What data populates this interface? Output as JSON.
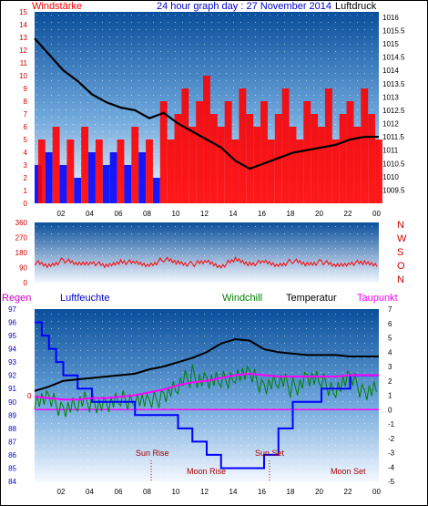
{
  "header": {
    "title": "24 hour graph day : 27 November 2014",
    "left_label": "Windstärke",
    "right_label": "Luftdruck"
  },
  "chart_data": [
    {
      "type": "line",
      "name": "wind-pressure",
      "left_axis": {
        "label": "Windstärke",
        "ylim": [
          0,
          15
        ],
        "ticks": [
          "0",
          "1",
          "2",
          "3",
          "4",
          "5",
          "6",
          "7",
          "8",
          "9",
          "10",
          "11",
          "12",
          "13",
          "14",
          "15"
        ]
      },
      "right_axis": {
        "label": "Luftdruck",
        "ylim": [
          1009,
          1016.2
        ],
        "ticks": [
          "1009.5",
          "1010",
          "1010.5",
          "1011",
          "1011.5",
          "1012",
          "1012.5",
          "1013",
          "1013.5",
          "1014",
          "1014.5",
          "1015",
          "1015.5",
          "1016"
        ]
      },
      "x_ticks": [
        "02",
        "04",
        "06",
        "08",
        "10",
        "12",
        "14",
        "16",
        "18",
        "20",
        "22",
        "00"
      ],
      "series": [
        {
          "name": "Windstärke",
          "x": [
            0,
            0.5,
            1,
            1.5,
            2,
            2.5,
            3,
            3.5,
            4,
            4.5,
            5,
            5.5,
            6,
            6.5,
            7,
            7.5,
            8,
            8.5,
            9,
            9.5,
            10,
            10.5,
            11,
            11.5,
            12,
            12.5,
            13,
            13.5,
            14,
            14.5,
            15,
            15.5,
            16,
            16.5,
            17,
            17.5,
            18,
            18.5,
            19,
            19.5,
            20,
            20.5,
            21,
            21.5,
            22,
            22.5,
            23,
            23.5,
            24
          ],
          "y": [
            3,
            5,
            4,
            6,
            3,
            5,
            2,
            6,
            4,
            5,
            3,
            4,
            5,
            3,
            6,
            4,
            5,
            2,
            8,
            5,
            7,
            9,
            6,
            8,
            10,
            7,
            6,
            8,
            5,
            9,
            7,
            6,
            8,
            5,
            7,
            9,
            6,
            5,
            8,
            7,
            6,
            9,
            5,
            7,
            8,
            6,
            9,
            7,
            5
          ]
        },
        {
          "name": "Luftdruck",
          "x": [
            0,
            1,
            2,
            3,
            4,
            5,
            6,
            7,
            8,
            9,
            10,
            11,
            12,
            13,
            14,
            15,
            16,
            17,
            18,
            19,
            20,
            21,
            22,
            23,
            24
          ],
          "y": [
            1015.2,
            1014.6,
            1014.0,
            1013.6,
            1013.1,
            1012.8,
            1012.6,
            1012.5,
            1012.2,
            1012.4,
            1012.0,
            1011.7,
            1011.4,
            1011.1,
            1010.6,
            1010.3,
            1010.5,
            1010.7,
            1010.9,
            1011.0,
            1011.1,
            1011.2,
            1011.4,
            1011.5,
            1011.5
          ]
        }
      ]
    },
    {
      "type": "line",
      "name": "wind-direction",
      "left_axis": {
        "ylim": [
          0,
          360
        ],
        "ticks": [
          "0",
          "90",
          "180",
          "270",
          "360"
        ]
      },
      "right_labels": [
        "N",
        "W",
        "S",
        "O",
        "N"
      ],
      "series": [
        {
          "name": "Windrichtung",
          "x": [
            0,
            1,
            2,
            3,
            4,
            5,
            6,
            7,
            8,
            9,
            10,
            11,
            12,
            13,
            14,
            15,
            16,
            17,
            18,
            19,
            20,
            21,
            22,
            23,
            24
          ],
          "y": [
            120,
            100,
            135,
            110,
            125,
            95,
            130,
            115,
            105,
            140,
            120,
            110,
            125,
            100,
            135,
            115,
            120,
            105,
            130,
            110,
            125,
            100,
            120,
            115,
            110
          ]
        }
      ]
    },
    {
      "type": "line",
      "name": "temperature-humidity",
      "header_labels": [
        "Regen",
        "Luftfeuchte",
        "Windchill",
        "Temperatur",
        "Taupunkt"
      ],
      "left_axis": {
        "ylim": [
          84,
          97
        ],
        "ticks": [
          "84",
          "85",
          "86",
          "87",
          "88",
          "89",
          "90",
          "91",
          "92",
          "93",
          "94",
          "95",
          "96",
          "97"
        ]
      },
      "right_axis": {
        "ylim": [
          -5,
          7
        ],
        "ticks": [
          "-5",
          "-4",
          "-3",
          "-2",
          "-1",
          "0",
          "1",
          "2",
          "3",
          "4",
          "5",
          "6",
          "7"
        ]
      },
      "rain_axis_label": "0",
      "x_ticks": [
        "02",
        "04",
        "06",
        "08",
        "10",
        "12",
        "14",
        "16",
        "18",
        "20",
        "22",
        "00"
      ],
      "annotations": [
        "Sun Rise",
        "Moon Rise",
        "Sun Set",
        "Moon Set"
      ],
      "series": [
        {
          "name": "Luftfeuchte",
          "x": [
            0,
            0.5,
            1,
            1.5,
            2,
            3,
            4,
            5,
            6,
            7,
            8,
            9,
            10,
            11,
            12,
            13,
            14,
            15,
            16,
            17,
            18,
            19,
            20,
            21,
            22,
            23,
            24
          ],
          "y": [
            96,
            95,
            94,
            93,
            92,
            91,
            90,
            90,
            90,
            89,
            89,
            89,
            88,
            87,
            86,
            85,
            85,
            85,
            86,
            88,
            90,
            90,
            91,
            91,
            92,
            92,
            92
          ]
        },
        {
          "name": "Temperatur",
          "x": [
            0,
            1,
            2,
            3,
            4,
            5,
            6,
            7,
            8,
            9,
            10,
            11,
            12,
            13,
            14,
            15,
            16,
            17,
            18,
            19,
            20,
            21,
            22,
            23,
            24
          ],
          "y": [
            1.3,
            1.6,
            2.0,
            2.1,
            2.2,
            2.3,
            2.4,
            2.5,
            2.8,
            3.0,
            3.3,
            3.6,
            4.0,
            4.6,
            4.9,
            4.8,
            4.2,
            4.0,
            3.9,
            3.8,
            3.8,
            3.8,
            3.7,
            3.7,
            3.7
          ]
        },
        {
          "name": "Windchill",
          "x": [
            0,
            1,
            2,
            3,
            4,
            5,
            6,
            7,
            8,
            9,
            10,
            11,
            12,
            13,
            14,
            15,
            16,
            17,
            18,
            19,
            20,
            21,
            22,
            23,
            24
          ],
          "y": [
            0.8,
            0.5,
            0.2,
            0.4,
            0.6,
            0.3,
            0.5,
            1.0,
            0.2,
            1.2,
            1.6,
            2.4,
            2.0,
            1.8,
            2.6,
            2.2,
            1.8,
            2.0,
            1.5,
            2.2,
            1.8,
            1.6,
            2.0,
            1.4,
            1.5
          ]
        },
        {
          "name": "Taupunkt",
          "x": [
            0,
            1,
            2,
            3,
            4,
            5,
            6,
            7,
            8,
            9,
            10,
            11,
            12,
            13,
            14,
            15,
            16,
            17,
            18,
            19,
            20,
            21,
            22,
            23,
            24
          ],
          "y": [
            0.9,
            0.8,
            0.7,
            0.7,
            0.8,
            0.8,
            0.9,
            1.0,
            1.2,
            1.4,
            1.7,
            1.9,
            2.0,
            2.2,
            2.4,
            2.5,
            2.4,
            2.3,
            2.3,
            2.3,
            2.3,
            2.3,
            2.4,
            2.4,
            2.4
          ]
        },
        {
          "name": "Regen",
          "x": [
            0,
            24
          ],
          "y": [
            0,
            0
          ]
        }
      ]
    }
  ],
  "colors": {
    "wind": "#ff0000",
    "wind_low": "#0000ff",
    "pressure": "#000000",
    "direction": "#ff0000",
    "humidity": "#0000ff",
    "temperature": "#000000",
    "windchill": "#008000",
    "dewpoint": "#ff00ff",
    "rain": "#ff00ff",
    "axis_left": "#0000ff",
    "axis_right_dir": "#cc0000"
  }
}
